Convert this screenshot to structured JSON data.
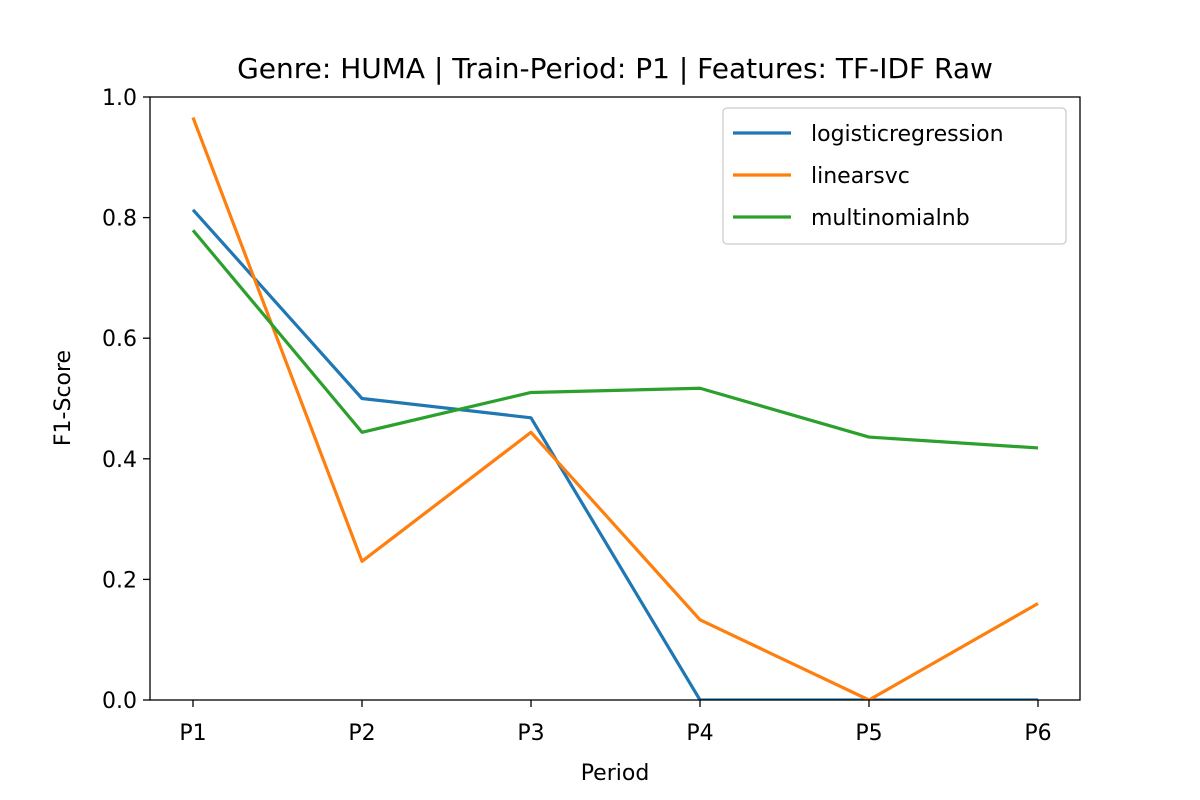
{
  "chart_data": {
    "type": "line",
    "title": "Genre: HUMA | Train-Period: P1 | Features: TF-IDF Raw",
    "xlabel": "Period",
    "ylabel": "F1-Score",
    "categories": [
      "P1",
      "P2",
      "P3",
      "P4",
      "P5",
      "P6"
    ],
    "ylim": [
      0,
      1
    ],
    "yticks": [
      0.0,
      0.2,
      0.4,
      0.6,
      0.8,
      1.0
    ],
    "ytick_labels": [
      "0.0",
      "0.2",
      "0.4",
      "0.6",
      "0.8",
      "1.0"
    ],
    "grid": false,
    "legend_position": "top-right",
    "series": [
      {
        "name": "logisticregression",
        "color": "#1f77b4",
        "values": [
          0.813,
          0.5,
          0.468,
          0.0,
          0.0,
          0.0
        ]
      },
      {
        "name": "linearsvc",
        "color": "#ff7f0e",
        "values": [
          0.966,
          0.23,
          0.444,
          0.133,
          0.0,
          0.16
        ]
      },
      {
        "name": "multinomialnb",
        "color": "#2ca02c",
        "values": [
          0.779,
          0.444,
          0.51,
          0.517,
          0.436,
          0.418
        ]
      }
    ]
  }
}
